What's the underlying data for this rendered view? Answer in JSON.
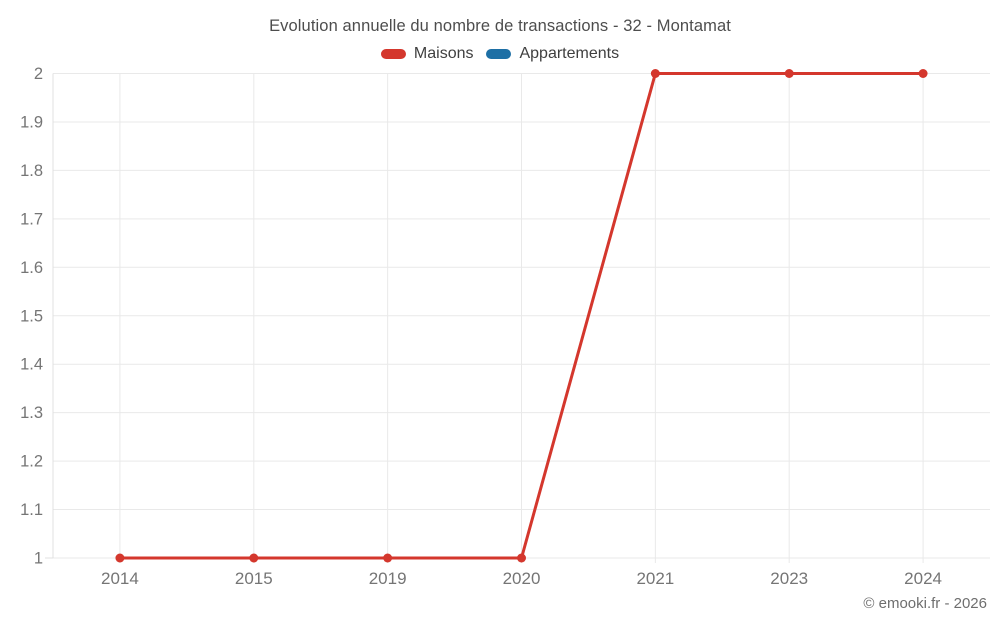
{
  "title": "Evolution annuelle du nombre de transactions - 32 - Montamat",
  "legend": [
    {
      "label": "Maisons",
      "color": "#d4372d"
    },
    {
      "label": "Appartements",
      "color": "#1d6fa5"
    }
  ],
  "copyright": "© emooki.fr - 2026",
  "colors": {
    "series_maisons": "#d4372d",
    "series_appartements": "#1d6fa5",
    "gridline": "#e9e9e9",
    "axis_line": "#e0e0e0",
    "tick_label": "#757575",
    "title_text": "#4d4d4d",
    "legend_text": "#3f3f3f",
    "copyright_text": "#6e6e6e",
    "background": "#ffffff"
  },
  "chart_data": {
    "type": "line",
    "title": "Evolution annuelle du nombre de transactions - 32 - Montamat",
    "categories": [
      "2014",
      "2015",
      "2019",
      "2020",
      "2021",
      "2023",
      "2024"
    ],
    "series": [
      {
        "name": "Maisons",
        "color": "#d4372d",
        "values": [
          1,
          1,
          1,
          1,
          2,
          2,
          2
        ]
      },
      {
        "name": "Appartements",
        "color": "#1d6fa5",
        "values": []
      }
    ],
    "xlabel": "",
    "ylabel": "",
    "ylim": [
      1,
      2
    ],
    "yticks": [
      1,
      1.1,
      1.2,
      1.3,
      1.4,
      1.5,
      1.6,
      1.7,
      1.8,
      1.9,
      2
    ],
    "ytick_labels": [
      "1",
      "1.1",
      "1.2",
      "1.3",
      "1.4",
      "1.5",
      "1.6",
      "1.7",
      "1.8",
      "1.9",
      "2"
    ],
    "grid": true,
    "legend_position": "top",
    "marker": "circle"
  }
}
